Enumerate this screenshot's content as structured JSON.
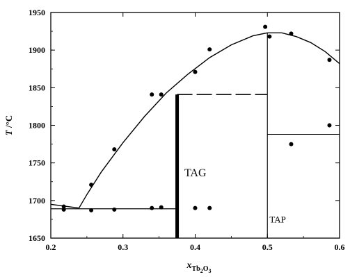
{
  "chart_data": {
    "type": "scatter",
    "title": "",
    "xlabel_main": "x",
    "xlabel_sub": "Tb",
    "xlabel_sub2": "2",
    "xlabel_sub3": "O",
    "xlabel_sub4": "3",
    "ylabel_main": "T",
    "ylabel_unit": "/°C",
    "xlim": [
      0.2,
      0.6
    ],
    "ylim": [
      1650,
      1950
    ],
    "xticks": [
      0.2,
      0.3,
      0.4,
      0.5,
      0.6
    ],
    "xtick_labels": [
      "0.2",
      "0.3",
      "0.4",
      "0.5",
      "0.6"
    ],
    "yticks": [
      1650,
      1700,
      1750,
      1800,
      1850,
      1900,
      1950
    ],
    "ytick_labels": [
      "1650",
      "1700",
      "1750",
      "1800",
      "1850",
      "1900",
      "1950"
    ],
    "grid": false,
    "points": [
      {
        "x": 0.218,
        "y": 1692
      },
      {
        "x": 0.218,
        "y": 1688
      },
      {
        "x": 0.256,
        "y": 1721
      },
      {
        "x": 0.256,
        "y": 1687
      },
      {
        "x": 0.288,
        "y": 1768
      },
      {
        "x": 0.288,
        "y": 1688
      },
      {
        "x": 0.34,
        "y": 1841
      },
      {
        "x": 0.34,
        "y": 1690
      },
      {
        "x": 0.353,
        "y": 1841
      },
      {
        "x": 0.353,
        "y": 1691
      },
      {
        "x": 0.4,
        "y": 1871
      },
      {
        "x": 0.4,
        "y": 1690
      },
      {
        "x": 0.42,
        "y": 1901
      },
      {
        "x": 0.42,
        "y": 1690
      },
      {
        "x": 0.497,
        "y": 1931
      },
      {
        "x": 0.503,
        "y": 1918
      },
      {
        "x": 0.533,
        "y": 1922
      },
      {
        "x": 0.533,
        "y": 1775
      },
      {
        "x": 0.586,
        "y": 1887
      },
      {
        "x": 0.586,
        "y": 1800
      }
    ],
    "liquidus_left": [
      [
        0.239,
        1690
      ],
      [
        0.25,
        1708
      ],
      [
        0.27,
        1738
      ],
      [
        0.3,
        1777
      ],
      [
        0.33,
        1812
      ],
      [
        0.36,
        1843
      ],
      [
        0.39,
        1868
      ],
      [
        0.42,
        1890
      ],
      [
        0.45,
        1907
      ],
      [
        0.48,
        1919
      ],
      [
        0.5,
        1923
      ]
    ],
    "liquidus_right": [
      [
        0.5,
        1923
      ],
      [
        0.52,
        1923
      ],
      [
        0.54,
        1918
      ],
      [
        0.56,
        1910
      ],
      [
        0.58,
        1898
      ],
      [
        0.6,
        1882
      ]
    ],
    "eutectic_left": [
      [
        0.2,
        1695
      ],
      [
        0.239,
        1690
      ]
    ],
    "solidus_line": {
      "x1": 0.2,
      "x2": 0.375,
      "y": 1689
    },
    "tag_compound": {
      "x": 0.375,
      "y_top": 1841,
      "y_bottom": 1650
    },
    "peritectic_line": {
      "x1": 0.375,
      "x2": 0.5,
      "y": 1841
    },
    "tap_line": {
      "x": 0.5,
      "y_top": 1923,
      "y_bottom": 1650
    },
    "tap_step": {
      "x1": 0.5,
      "x2": 0.6,
      "y": 1788
    },
    "regions": [
      {
        "label": "TAG",
        "x": 0.385,
        "y": 1732
      },
      {
        "label": "TAP",
        "x": 0.503,
        "y": 1671
      }
    ]
  }
}
